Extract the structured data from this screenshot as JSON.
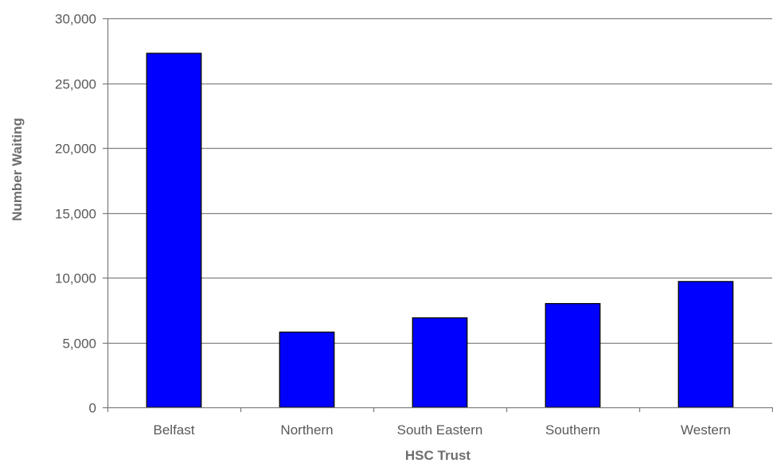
{
  "chart_data": {
    "type": "bar",
    "title": "",
    "xlabel": "HSC Trust",
    "ylabel": "Number Waiting",
    "categories": [
      "Belfast",
      "Northern",
      "South Eastern",
      "Southern",
      "Western"
    ],
    "values": [
      27300,
      5800,
      6900,
      8000,
      9700
    ],
    "ylim": [
      0,
      30000
    ],
    "yticks": [
      0,
      5000,
      10000,
      15000,
      20000,
      25000,
      30000
    ],
    "ytick_labels": [
      "0",
      "5,000",
      "10,000",
      "15,000",
      "20,000",
      "25,000",
      "30,000"
    ],
    "grid": true,
    "legend": "none",
    "bar_color": "#0000ff",
    "bar_edge_color": "#000000",
    "grid_color": "#808080"
  }
}
